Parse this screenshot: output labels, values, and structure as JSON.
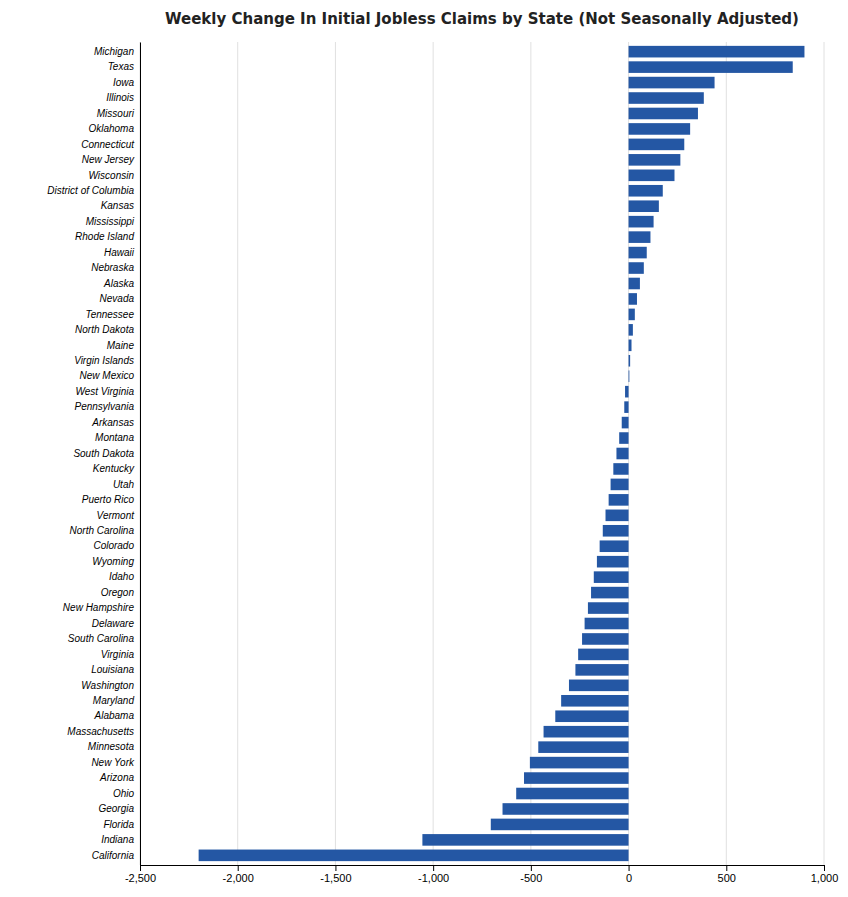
{
  "chart_data": {
    "type": "bar",
    "orientation": "horizontal",
    "title": "Weekly Change In Initial Jobless Claims by State (Not Seasonally Adjusted)",
    "categories": [
      "Michigan",
      "Texas",
      "Iowa",
      "Illinois",
      "Missouri",
      "Oklahoma",
      "Connecticut",
      "New Jersey",
      "Wisconsin",
      "District of Columbia",
      "Kansas",
      "Mississippi",
      "Rhode Island",
      "Hawaii",
      "Nebraska",
      "Alaska",
      "Nevada",
      "Tennessee",
      "North Dakota",
      "Maine",
      "Virgin Islands",
      "New Mexico",
      "West Virginia",
      "Pennsylvania",
      "Arkansas",
      "Montana",
      "South Dakota",
      "Kentucky",
      "Utah",
      "Puerto Rico",
      "Vermont",
      "North Carolina",
      "Colorado",
      "Wyoming",
      "Idaho",
      "Oregon",
      "New Hampshire",
      "Delaware",
      "South Carolina",
      "Virginia",
      "Louisiana",
      "Washington",
      "Maryland",
      "Alabama",
      "Massachusetts",
      "Minnesota",
      "New York",
      "Arizona",
      "Ohio",
      "Georgia",
      "Florida",
      "Indiana",
      "California"
    ],
    "values": [
      900,
      840,
      440,
      385,
      355,
      315,
      285,
      265,
      235,
      175,
      155,
      128,
      112,
      93,
      78,
      58,
      43,
      32,
      22,
      15,
      8,
      4,
      -18,
      -22,
      -35,
      -48,
      -62,
      -78,
      -92,
      -102,
      -118,
      -132,
      -148,
      -162,
      -178,
      -192,
      -208,
      -225,
      -238,
      -258,
      -272,
      -305,
      -345,
      -375,
      -435,
      -462,
      -505,
      -535,
      -575,
      -645,
      -705,
      -1055,
      -2200
    ],
    "color": "#2457A4",
    "xlim": [
      -2500,
      1000
    ],
    "xticks": [
      {
        "value": -2500,
        "label": "-2,500"
      },
      {
        "value": -2000,
        "label": "-2,000"
      },
      {
        "value": -1500,
        "label": "-1,500"
      },
      {
        "value": -1000,
        "label": "-1,000"
      },
      -500,
      0,
      500,
      {
        "value": 1000,
        "label": "1,000"
      }
    ],
    "grid": true
  }
}
